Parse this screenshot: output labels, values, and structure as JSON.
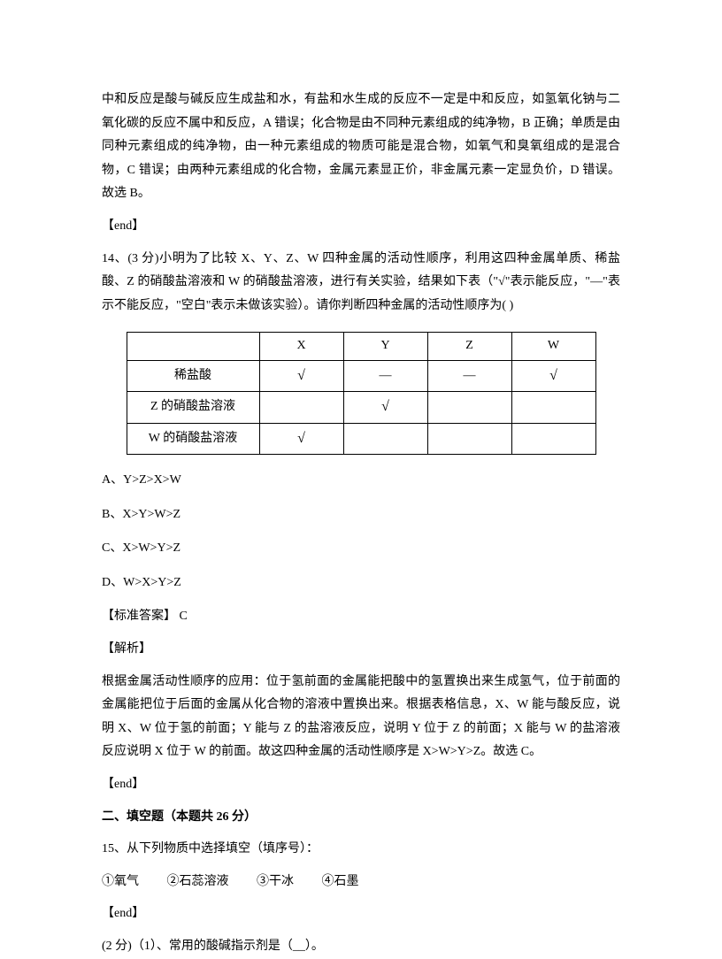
{
  "explanation_top": "中和反应是酸与碱反应生成盐和水，有盐和水生成的反应不一定是中和反应，如氢氧化钠与二氧化碳的反应不属中和反应，A 错误；化合物是由不同种元素组成的纯净物，B 正确；单质是由同种元素组成的纯净物，由一种元素组成的物质可能是混合物，如氧气和臭氧组成的是混合物，C 错误；由两种元素组成的化合物，金属元素显正价，非金属元素一定显负价，D 错误。故选 B。",
  "end_marker": "【end】",
  "q14": {
    "stem": "14、(3 分)小明为了比较 X、Y、Z、W 四种金属的活动性顺序，利用这四种金属单质、稀盐酸、Z 的硝酸盐溶液和 W 的硝酸盐溶液，进行有关实验，结果如下表（\"√\"表示能反应，\"—\"表示不能反应，\"空白\"表示未做该实验）。请你判断四种金属的活动性顺序为( )",
    "table": {
      "headers": [
        "",
        "X",
        "Y",
        "Z",
        "W"
      ],
      "rows": [
        {
          "label": "稀盐酸",
          "cells": [
            "√",
            "—",
            "—",
            "√"
          ]
        },
        {
          "label": "Z 的硝酸盐溶液",
          "cells": [
            "",
            "√",
            "",
            ""
          ]
        },
        {
          "label": "W 的硝酸盐溶液",
          "cells": [
            "√",
            "",
            "",
            ""
          ]
        }
      ]
    },
    "options": {
      "a": "A、Y>Z>X>W",
      "b": "B、X>Y>W>Z",
      "c": "C、X>W>Y>Z",
      "d": "D、W>X>Y>Z"
    },
    "answer_label": "【标准答案】 C",
    "analysis_label": "【解析】",
    "analysis": "根据金属活动性顺序的应用：位于氢前面的金属能把酸中的氢置换出来生成氢气，位于前面的金属能把位于后面的金属从化合物的溶液中置换出来。根据表格信息，X、W 能与酸反应，说明 X、W 位于氢的前面；Y 能与 Z 的盐溶液反应，说明 Y 位于 Z 的前面；X 能与 W 的盐溶液反应说明 X 位于 W 的前面。故这四种金属的活动性顺序是 X>W>Y>Z。故选 C。"
  },
  "section2": {
    "header": "二、填空题（本题共 26 分）",
    "q15": {
      "stem": "15、从下列物质中选择填空（填序号）：",
      "items": [
        "①氧气",
        "②石蕊溶液",
        "③干冰",
        "④石墨"
      ],
      "sub1": "(2 分)（1）、常用的酸碱指示剂是（__）。"
    }
  }
}
